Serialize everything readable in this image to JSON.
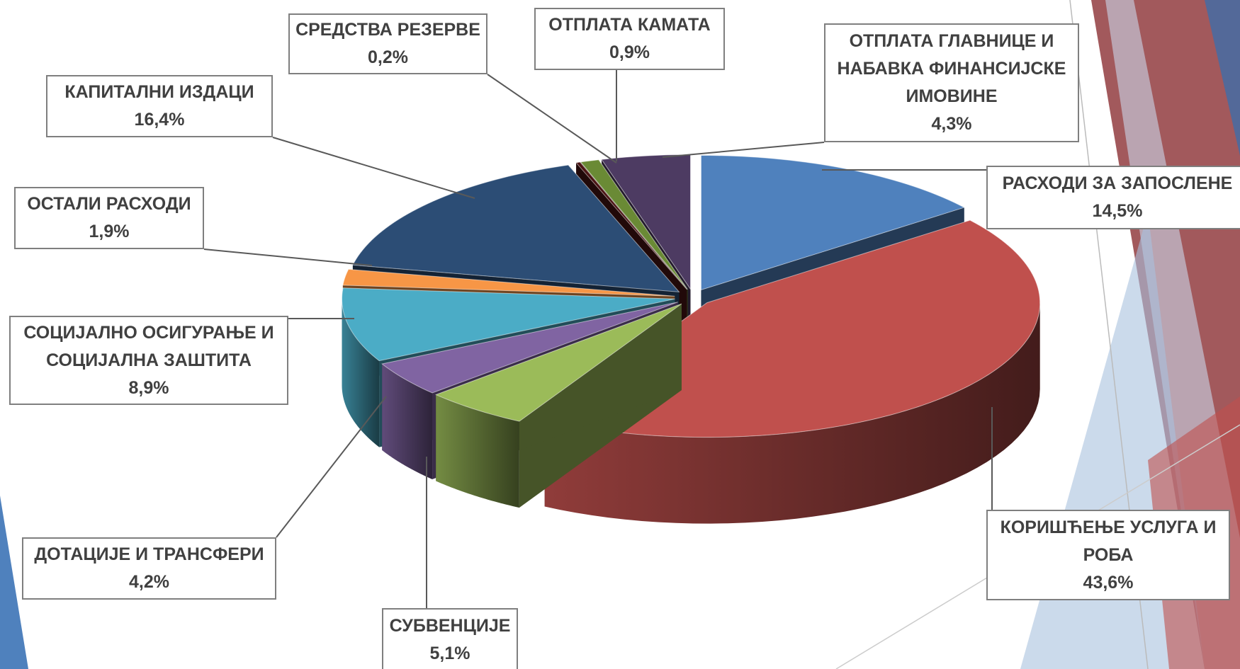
{
  "chart_data": {
    "type": "pie",
    "categories": [
      "РАСХОДИ ЗА ЗАПОСЛЕНЕ",
      "КОРИШЋЕЊЕ УСЛУГА И РОБА",
      "СУБВЕНЦИЈЕ",
      "ДОТАЦИЈЕ И ТРАНСФЕРИ",
      "СОЦИЈАЛНО ОСИГУРАЊЕ И СОЦИЈАЛНА ЗАШТИТА",
      "ОСТАЛИ РАСХОДИ",
      "КАПИТАЛНИ ИЗДАЦИ",
      "СРЕДСТВА РЕЗЕРВЕ",
      "ОТПЛАТА КАМАТА",
      "ОТПЛАТА ГЛАВНИЦЕ И НАБАВКА ФИНАНСИЈСКЕ ИМОВИНЕ"
    ],
    "values": [
      14.5,
      43.6,
      5.1,
      4.2,
      8.9,
      1.9,
      16.4,
      0.2,
      0.9,
      4.3
    ],
    "value_labels": [
      "14,5%",
      "43,6%",
      "5,1%",
      "4,2%",
      "8,9%",
      "1,9%",
      "16,4%",
      "0,2%",
      "0,9%",
      "4,3%"
    ],
    "colors": [
      "#4f81bd",
      "#c0504d",
      "#9bbb59",
      "#8064a2",
      "#4bacc6",
      "#f79646",
      "#2c4d75",
      "#4a1414",
      "#6a8a35",
      "#4d3b62"
    ]
  }
}
